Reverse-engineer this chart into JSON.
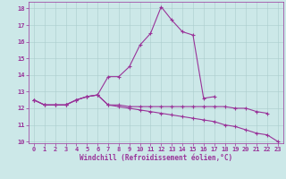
{
  "xlabel": "Windchill (Refroidissement éolien,°C)",
  "x": [
    0,
    1,
    2,
    3,
    4,
    5,
    6,
    7,
    8,
    9,
    10,
    11,
    12,
    13,
    14,
    15,
    16,
    17,
    18,
    19,
    20,
    21,
    22,
    23
  ],
  "line_peak": [
    12.5,
    12.2,
    12.2,
    12.2,
    12.5,
    12.7,
    12.8,
    13.9,
    13.9,
    14.5,
    15.8,
    16.5,
    18.1,
    17.3,
    16.6,
    16.4,
    12.6,
    12.7,
    null,
    null,
    null,
    null,
    null,
    null
  ],
  "line_mid": [
    12.5,
    12.2,
    12.2,
    12.2,
    12.5,
    12.7,
    12.8,
    12.2,
    12.2,
    12.1,
    12.1,
    12.1,
    12.1,
    12.1,
    12.1,
    12.1,
    12.1,
    12.1,
    12.1,
    12.0,
    12.0,
    11.8,
    11.7,
    null
  ],
  "line_low": [
    12.5,
    12.2,
    12.2,
    12.2,
    12.5,
    12.7,
    12.8,
    12.2,
    12.1,
    12.0,
    11.9,
    11.8,
    11.7,
    11.6,
    11.5,
    11.4,
    11.3,
    11.2,
    11.0,
    10.9,
    10.7,
    10.5,
    10.4,
    10.0
  ],
  "line_color": "#993399",
  "bg_color": "#cce8e8",
  "grid_color": "#aacccc",
  "ylim": [
    9.9,
    18.4
  ],
  "yticks": [
    10,
    11,
    12,
    13,
    14,
    15,
    16,
    17,
    18
  ],
  "xlim": [
    -0.5,
    23.5
  ]
}
